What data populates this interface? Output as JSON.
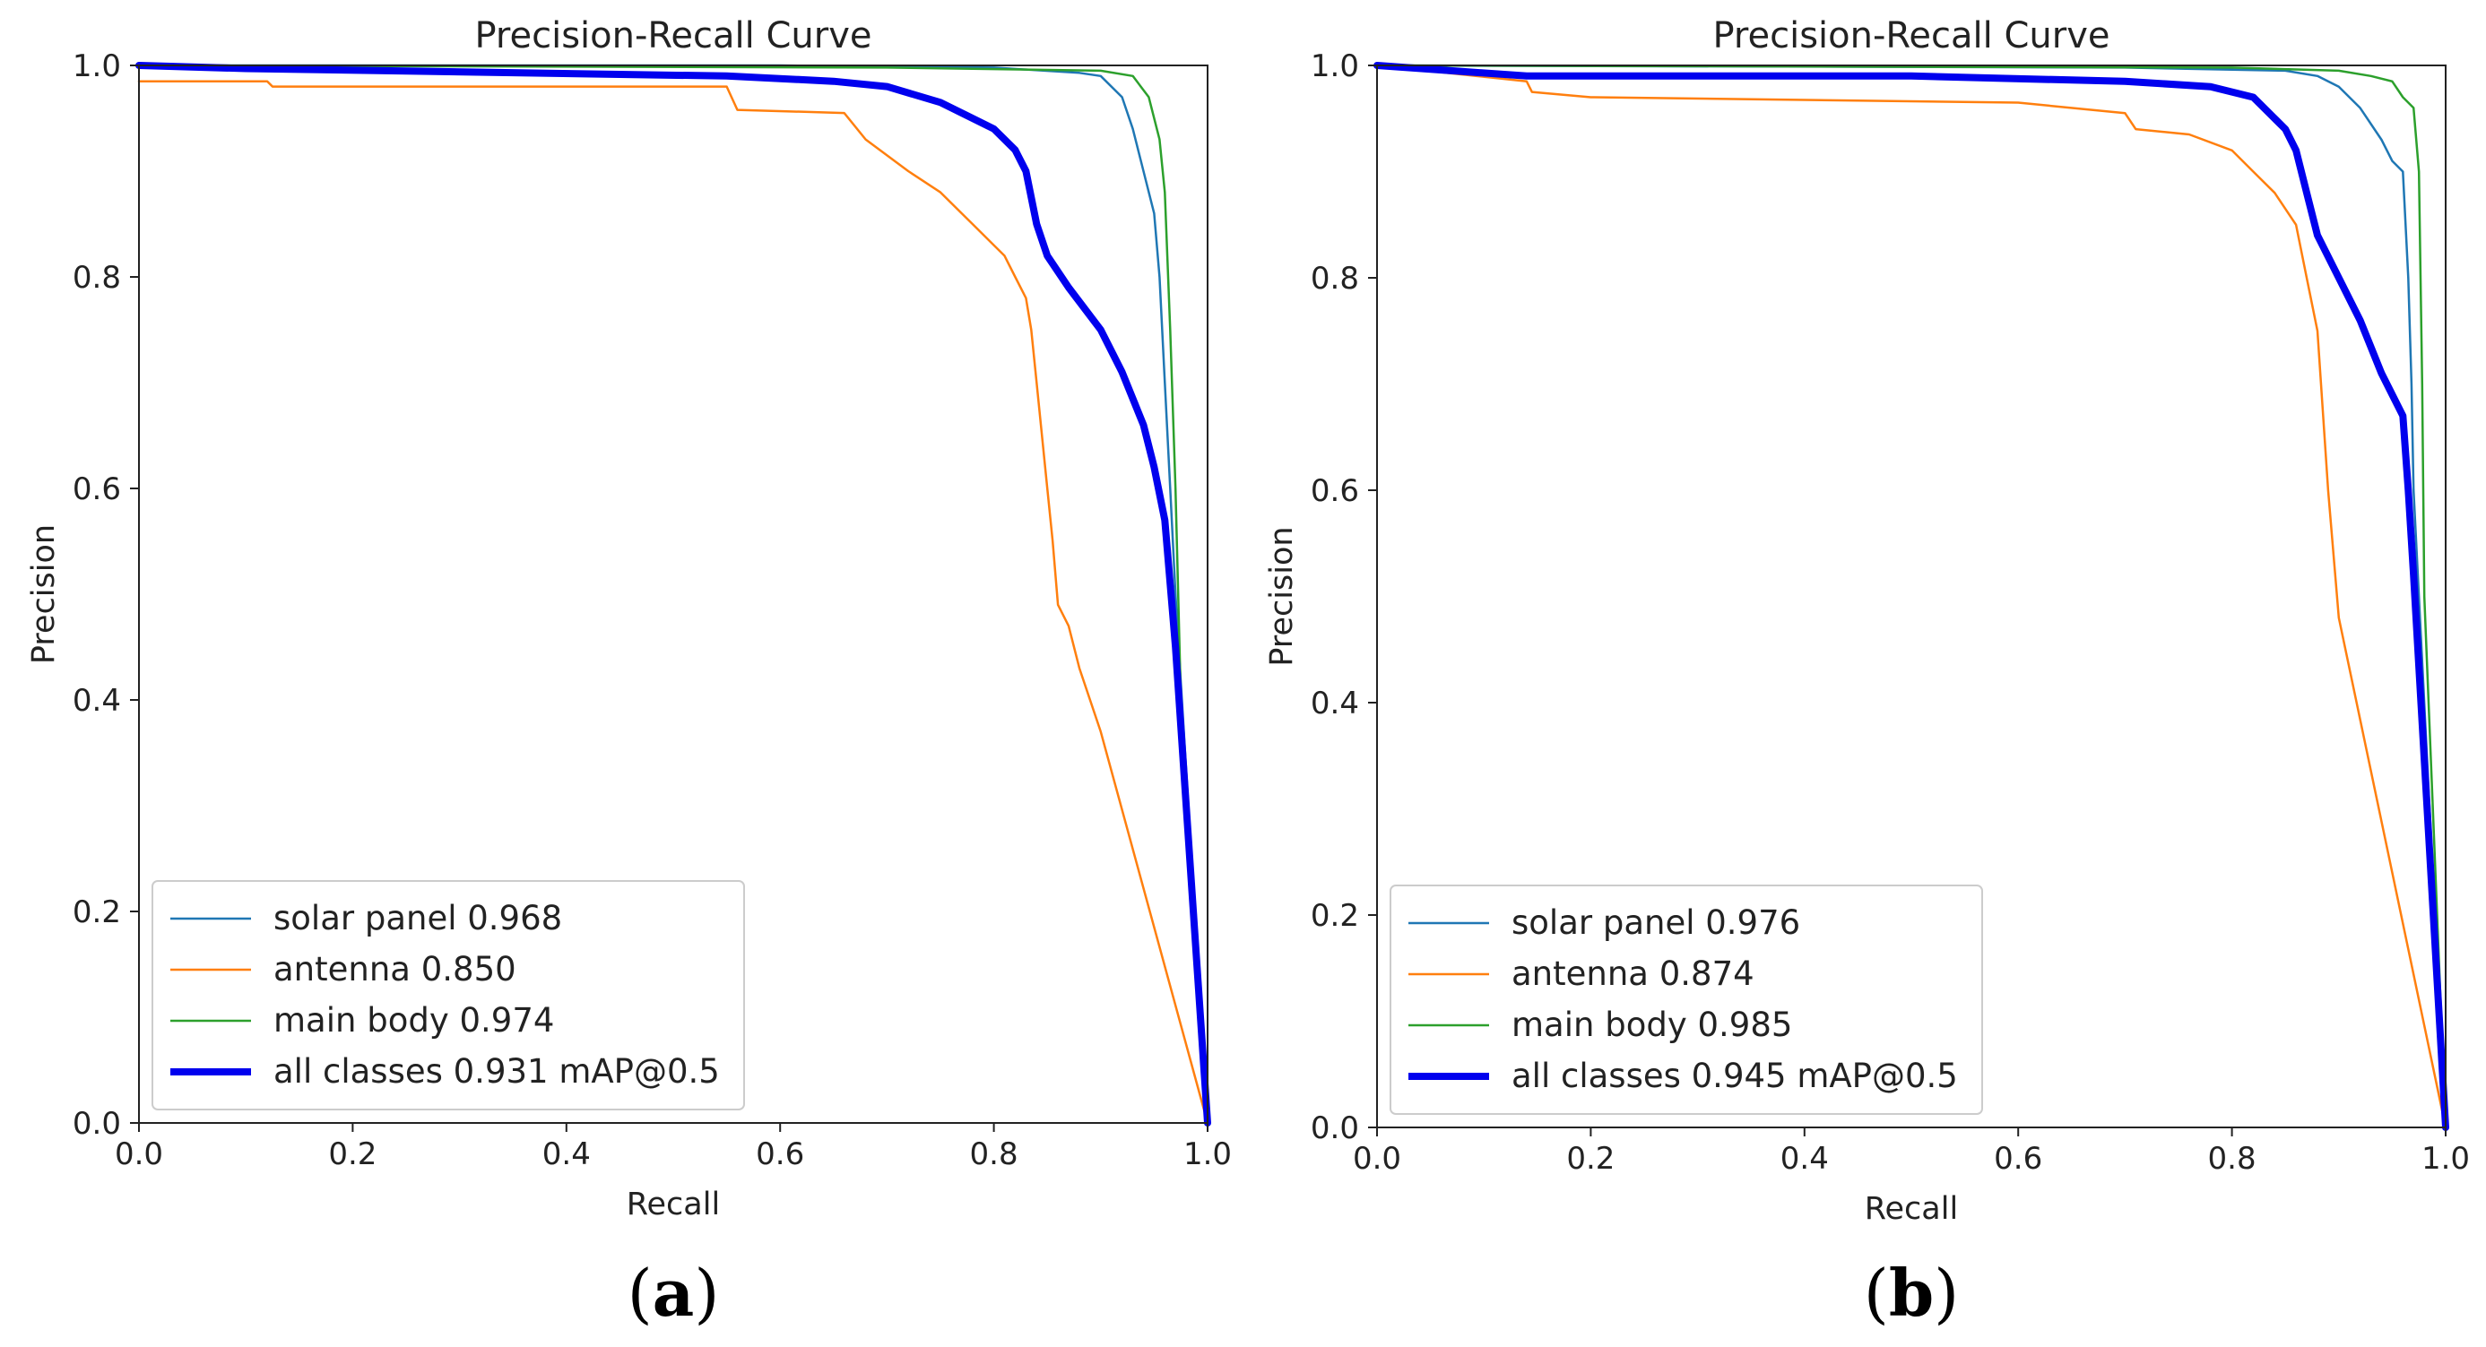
{
  "colors": {
    "solar_panel": "#1f77b4",
    "antenna": "#ff7f0e",
    "main_body": "#2ca02c",
    "all_classes": "#0000ee",
    "axes": "#222222",
    "legend_border": "#cccccc"
  },
  "chart_data": [
    {
      "type": "line",
      "title": "Precision-Recall Curve",
      "xlabel": "Recall",
      "ylabel": "Precision",
      "xlim": [
        0.0,
        1.0
      ],
      "ylim": [
        0.0,
        1.0
      ],
      "xticks": [
        "0.0",
        "0.2",
        "0.4",
        "0.6",
        "0.8",
        "1.0"
      ],
      "yticks": [
        "0.0",
        "0.2",
        "0.4",
        "0.6",
        "0.8",
        "1.0"
      ],
      "legend_position": "bottom-left",
      "caption": {
        "open": "(",
        "letter": "a",
        "close": ")"
      },
      "series": [
        {
          "name": "solar panel 0.968",
          "color_key": "solar_panel",
          "width_class": "thin",
          "x": [
            0.0,
            0.6,
            0.8,
            0.88,
            0.9,
            0.92,
            0.93,
            0.94,
            0.95,
            0.955,
            0.96,
            0.965,
            0.97,
            1.0
          ],
          "y": [
            1.0,
            1.0,
            0.998,
            0.993,
            0.99,
            0.97,
            0.94,
            0.9,
            0.86,
            0.8,
            0.7,
            0.6,
            0.5,
            0.0
          ]
        },
        {
          "name": "antenna 0.850",
          "color_key": "antenna",
          "width_class": "thin",
          "x": [
            0.0,
            0.12,
            0.125,
            0.55,
            0.56,
            0.66,
            0.68,
            0.72,
            0.75,
            0.78,
            0.8,
            0.81,
            0.82,
            0.83,
            0.835,
            0.84,
            0.85,
            0.855,
            0.86,
            0.87,
            0.88,
            0.89,
            0.9,
            1.0
          ],
          "y": [
            0.985,
            0.985,
            0.98,
            0.98,
            0.958,
            0.955,
            0.93,
            0.9,
            0.88,
            0.85,
            0.83,
            0.82,
            0.8,
            0.78,
            0.75,
            0.7,
            0.6,
            0.55,
            0.49,
            0.47,
            0.43,
            0.4,
            0.37,
            0.0
          ]
        },
        {
          "name": "main body 0.974",
          "color_key": "main_body",
          "width_class": "thin",
          "x": [
            0.0,
            0.7,
            0.9,
            0.93,
            0.945,
            0.955,
            0.96,
            0.965,
            0.97,
            0.975,
            1.0
          ],
          "y": [
            1.0,
            0.998,
            0.995,
            0.99,
            0.97,
            0.93,
            0.88,
            0.75,
            0.6,
            0.4,
            0.0
          ]
        },
        {
          "name": "all classes 0.931 mAP@0.5",
          "color_key": "all_classes",
          "width_class": "thick",
          "x": [
            0.0,
            0.1,
            0.55,
            0.65,
            0.7,
            0.75,
            0.8,
            0.82,
            0.83,
            0.84,
            0.85,
            0.87,
            0.9,
            0.92,
            0.94,
            0.95,
            0.96,
            0.97,
            1.0
          ],
          "y": [
            1.0,
            0.997,
            0.99,
            0.985,
            0.98,
            0.965,
            0.94,
            0.92,
            0.9,
            0.85,
            0.82,
            0.79,
            0.75,
            0.71,
            0.66,
            0.62,
            0.57,
            0.45,
            0.0
          ]
        }
      ]
    },
    {
      "type": "line",
      "title": "Precision-Recall Curve",
      "xlabel": "Recall",
      "ylabel": "Precision",
      "xlim": [
        0.0,
        1.0
      ],
      "ylim": [
        0.0,
        1.0
      ],
      "xticks": [
        "0.0",
        "0.2",
        "0.4",
        "0.6",
        "0.8",
        "1.0"
      ],
      "yticks": [
        "0.0",
        "0.2",
        "0.4",
        "0.6",
        "0.8",
        "1.0"
      ],
      "legend_position": "bottom-left",
      "caption": {
        "open": "(",
        "letter": "b",
        "close": ")"
      },
      "series": [
        {
          "name": "solar panel 0.976",
          "color_key": "solar_panel",
          "width_class": "thin",
          "x": [
            0.0,
            0.7,
            0.85,
            0.88,
            0.9,
            0.92,
            0.94,
            0.95,
            0.96,
            0.965,
            0.968,
            0.97,
            1.0
          ],
          "y": [
            1.0,
            0.998,
            0.995,
            0.99,
            0.98,
            0.96,
            0.93,
            0.91,
            0.9,
            0.8,
            0.7,
            0.6,
            0.0
          ]
        },
        {
          "name": "antenna 0.874",
          "color_key": "antenna",
          "width_class": "thin",
          "x": [
            0.0,
            0.14,
            0.145,
            0.2,
            0.6,
            0.7,
            0.71,
            0.76,
            0.8,
            0.82,
            0.84,
            0.86,
            0.87,
            0.88,
            0.89,
            0.9,
            1.0
          ],
          "y": [
            1.0,
            0.985,
            0.975,
            0.97,
            0.965,
            0.955,
            0.94,
            0.935,
            0.92,
            0.9,
            0.88,
            0.85,
            0.8,
            0.75,
            0.6,
            0.48,
            0.0
          ]
        },
        {
          "name": "main body 0.985",
          "color_key": "main_body",
          "width_class": "thin",
          "x": [
            0.0,
            0.8,
            0.9,
            0.93,
            0.95,
            0.96,
            0.97,
            0.975,
            0.978,
            0.98,
            1.0
          ],
          "y": [
            1.0,
            0.998,
            0.995,
            0.99,
            0.985,
            0.97,
            0.96,
            0.9,
            0.7,
            0.5,
            0.0
          ]
        },
        {
          "name": "all classes 0.945 mAP@0.5",
          "color_key": "all_classes",
          "width_class": "thick",
          "x": [
            0.0,
            0.14,
            0.5,
            0.7,
            0.78,
            0.82,
            0.85,
            0.86,
            0.87,
            0.88,
            0.9,
            0.92,
            0.94,
            0.96,
            0.965,
            0.97,
            1.0
          ],
          "y": [
            1.0,
            0.99,
            0.99,
            0.985,
            0.98,
            0.97,
            0.94,
            0.92,
            0.88,
            0.84,
            0.8,
            0.76,
            0.71,
            0.67,
            0.6,
            0.52,
            0.0
          ]
        }
      ]
    }
  ]
}
